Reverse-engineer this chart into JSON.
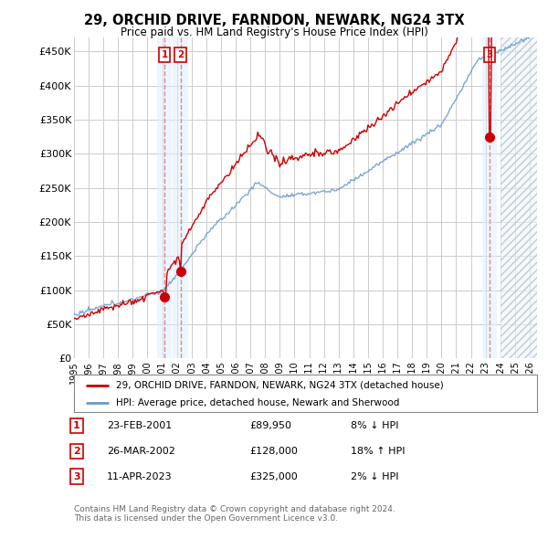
{
  "title": "29, ORCHID DRIVE, FARNDON, NEWARK, NG24 3TX",
  "subtitle": "Price paid vs. HM Land Registry's House Price Index (HPI)",
  "ylabel_ticks": [
    "£0",
    "£50K",
    "£100K",
    "£150K",
    "£200K",
    "£250K",
    "£300K",
    "£350K",
    "£400K",
    "£450K"
  ],
  "ytick_values": [
    0,
    50000,
    100000,
    150000,
    200000,
    250000,
    300000,
    350000,
    400000,
    450000
  ],
  "ylim": [
    0,
    470000
  ],
  "xlim_start": 1995.0,
  "xlim_end": 2026.5,
  "sales": [
    {
      "year": 2001.15,
      "price": 89950,
      "label": "1"
    },
    {
      "year": 2002.24,
      "price": 128000,
      "label": "2"
    },
    {
      "year": 2023.28,
      "price": 325000,
      "label": "3"
    }
  ],
  "sale_details": [
    {
      "num": "1",
      "date": "23-FEB-2001",
      "price": "£89,950",
      "change": "8% ↓ HPI"
    },
    {
      "num": "2",
      "date": "26-MAR-2002",
      "price": "£128,000",
      "change": "18% ↑ HPI"
    },
    {
      "num": "3",
      "date": "11-APR-2023",
      "price": "£325,000",
      "change": "2% ↓ HPI"
    }
  ],
  "legend_line1": "29, ORCHID DRIVE, FARNDON, NEWARK, NG24 3TX (detached house)",
  "legend_line2": "HPI: Average price, detached house, Newark and Sherwood",
  "footer1": "Contains HM Land Registry data © Crown copyright and database right 2024.",
  "footer2": "This data is licensed under the Open Government Licence v3.0.",
  "property_line_color": "#cc0000",
  "hpi_line_color": "#6699cc",
  "sale_marker_color": "#cc0000",
  "sale_box_color": "#cc0000",
  "vline_color": "#dd8888",
  "vband_color": "#ddeeff",
  "bg_color": "#ffffff",
  "grid_color": "#cccccc",
  "hatch_color": "#cccccc"
}
